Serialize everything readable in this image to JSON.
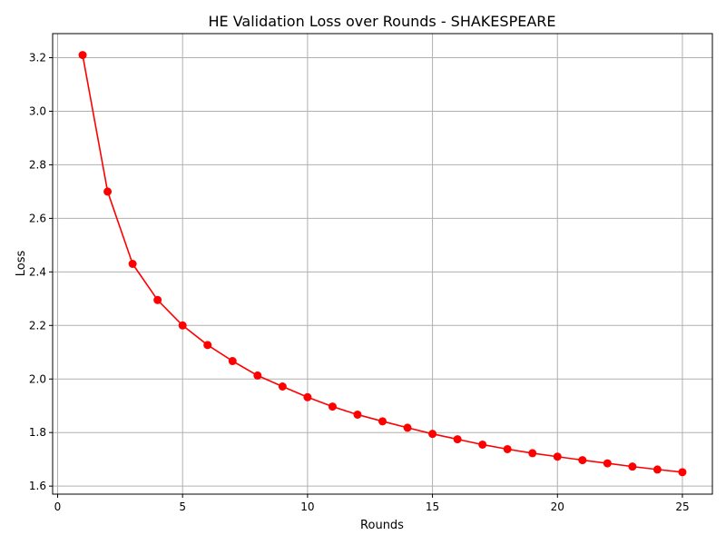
{
  "chart_data": {
    "type": "line",
    "title": "HE Validation Loss over Rounds - SHAKESPEARE",
    "xlabel": "Rounds",
    "ylabel": "Loss",
    "xlim": [
      -0.2,
      26.2
    ],
    "ylim": [
      1.57,
      3.29
    ],
    "xticks": [
      0,
      5,
      10,
      15,
      20,
      25
    ],
    "yticks": [
      1.6,
      1.8,
      2.0,
      2.2,
      2.4,
      2.6,
      2.8,
      3.0,
      3.2
    ],
    "xtick_labels": [
      "0",
      "5",
      "10",
      "15",
      "20",
      "25"
    ],
    "ytick_labels": [
      "1.6",
      "1.8",
      "2.0",
      "2.2",
      "2.4",
      "2.6",
      "2.8",
      "3.0",
      "3.2"
    ],
    "grid": true,
    "color": "#ff0000",
    "marker": "circle",
    "series": [
      {
        "x": [
          1,
          2,
          3,
          4,
          5,
          6,
          7,
          8,
          9,
          10,
          11,
          12,
          13,
          14,
          15,
          16,
          17,
          18,
          19,
          20,
          21,
          22,
          23,
          24,
          25
        ],
        "values": [
          3.21,
          2.7,
          2.43,
          2.295,
          2.2,
          2.127,
          2.067,
          2.013,
          1.972,
          1.932,
          1.897,
          1.867,
          1.842,
          1.818,
          1.795,
          1.775,
          1.755,
          1.738,
          1.723,
          1.71,
          1.697,
          1.685,
          1.673,
          1.662,
          1.652
        ]
      }
    ]
  }
}
